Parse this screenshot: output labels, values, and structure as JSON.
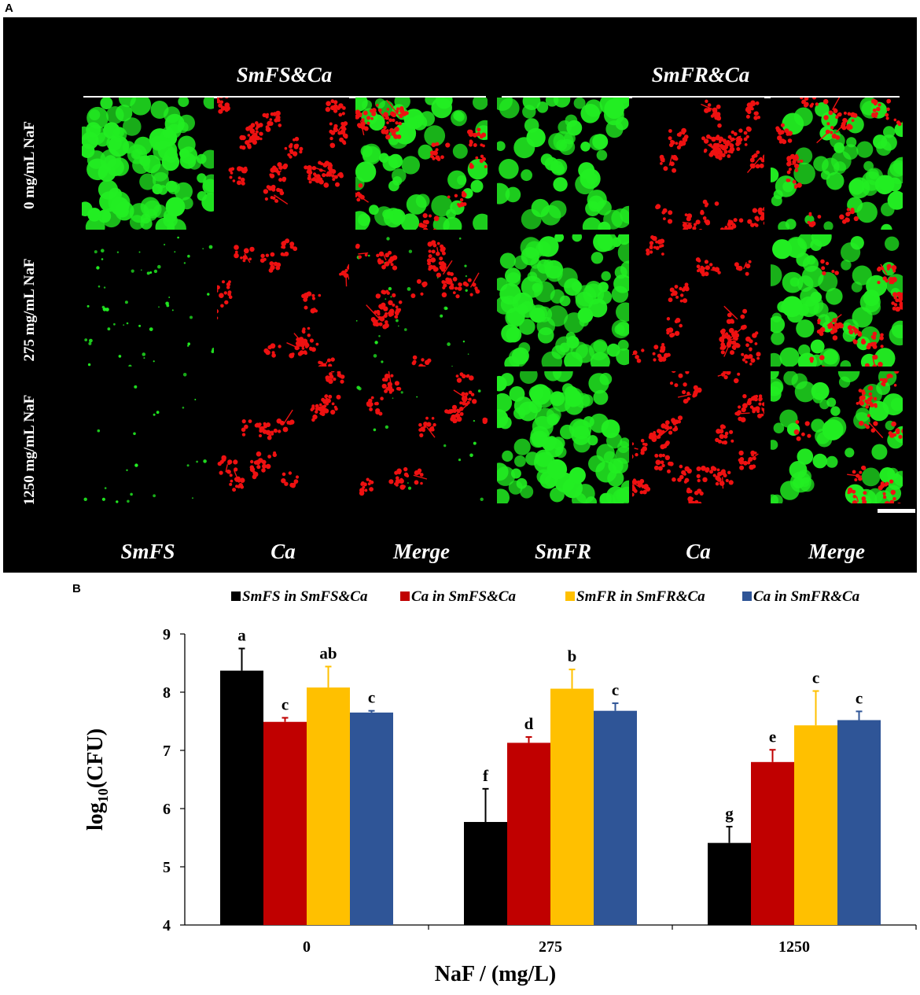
{
  "panel_a": {
    "label": "A",
    "groups": [
      {
        "title": "SmFS&Ca"
      },
      {
        "title": "SmFR&Ca"
      }
    ],
    "row_labels": [
      "0 mg/mL NaF",
      "275 mg/mL NaF",
      "1250 mg/mL NaF"
    ],
    "col_labels": [
      "SmFS",
      "Ca",
      "Merge",
      "SmFR",
      "Ca",
      "Merge"
    ],
    "tile_density": {
      "green": [
        [
          0.9,
          0.0,
          0.55,
          0.55,
          0.0,
          0.5
        ],
        [
          0.2,
          0.0,
          0.12,
          0.8,
          0.0,
          0.6
        ],
        [
          0.08,
          0.0,
          0.06,
          0.85,
          0.0,
          0.55
        ]
      ],
      "red": [
        [
          0.0,
          0.7,
          0.45,
          0.0,
          0.8,
          0.5
        ],
        [
          0.0,
          0.6,
          0.55,
          0.0,
          0.65,
          0.4
        ],
        [
          0.0,
          0.5,
          0.45,
          0.0,
          0.75,
          0.45
        ]
      ]
    },
    "colors": {
      "green": "#22ee22",
      "red": "#ee1111",
      "background": "#000000"
    }
  },
  "panel_b": {
    "label": "B",
    "chart_data": {
      "type": "bar",
      "categories": [
        "0",
        "275",
        "1250"
      ],
      "series": [
        {
          "name": "SmFS in SmFS&Ca",
          "color": "#000000",
          "values": [
            8.37,
            5.77,
            5.41
          ],
          "errors": [
            0.38,
            0.57,
            0.28
          ],
          "letters": [
            "a",
            "f",
            "g"
          ]
        },
        {
          "name": "Ca in SmFS&Ca",
          "color": "#c00000",
          "values": [
            7.49,
            7.13,
            6.8
          ],
          "errors": [
            0.07,
            0.1,
            0.21
          ],
          "letters": [
            "c",
            "d",
            "e"
          ]
        },
        {
          "name": "SmFR in SmFR&Ca",
          "color": "#ffc000",
          "values": [
            8.08,
            8.06,
            7.43
          ],
          "errors": [
            0.36,
            0.33,
            0.59
          ],
          "letters": [
            "ab",
            "b",
            "c"
          ]
        },
        {
          "name": "Ca in SmFR&Ca",
          "color": "#2f5597",
          "values": [
            7.65,
            7.68,
            7.52
          ],
          "errors": [
            0.03,
            0.13,
            0.15
          ],
          "letters": [
            "c",
            "c",
            "c"
          ]
        }
      ],
      "xlabel": "NaF / (mg/L)",
      "ylabel_main": "log",
      "ylabel_sub": "10",
      "ylabel_tail": "(CFU)",
      "ylim": [
        4,
        9
      ],
      "yticks": [
        "4",
        "5",
        "6",
        "7",
        "8",
        "9"
      ],
      "legend_position": "top"
    }
  }
}
